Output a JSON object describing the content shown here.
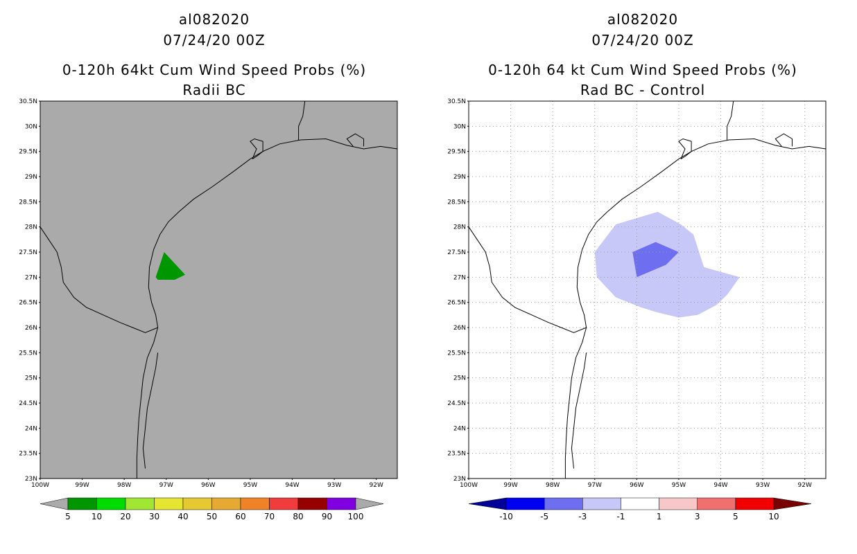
{
  "left_panel": {
    "storm_id": "al082020",
    "datetime": "07/24/20 00Z",
    "title": "0-120h 64kt Cum Wind Speed Probs (%)",
    "subtitle": "Radii BC",
    "land_color": "#aaaaaa",
    "colorbar": {
      "colors": [
        "#aaaaaa",
        "#009600",
        "#00dc00",
        "#a0e632",
        "#e6e632",
        "#e6c832",
        "#e6aa32",
        "#f08228",
        "#f03c3c",
        "#960000",
        "#8000e0",
        "#aaaaaa"
      ],
      "labels": [
        "5",
        "10",
        "20",
        "30",
        "40",
        "50",
        "60",
        "70",
        "80",
        "90",
        "100"
      ]
    }
  },
  "right_panel": {
    "storm_id": "al082020",
    "datetime": "07/24/20 00Z",
    "title": "0-120h 64 kt Cum Wind Speed Probs (%)",
    "subtitle": "Rad BC - Control",
    "colorbar": {
      "colors": [
        "#000096",
        "#0000f0",
        "#6e6ef0",
        "#c8c8f8",
        "#ffffff",
        "#f8c8c8",
        "#f07070",
        "#f00000",
        "#780000"
      ],
      "labels": [
        "-10",
        "-5",
        "-3",
        "-1",
        "1",
        "3",
        "5",
        "10"
      ]
    }
  },
  "axes": {
    "lat_labels": [
      "30.5N",
      "30N",
      "29.5N",
      "29N",
      "28.5N",
      "28N",
      "27.5N",
      "27N",
      "26.5N",
      "26N",
      "25.5N",
      "25N",
      "24.5N",
      "24N",
      "23.5N",
      "23N"
    ],
    "lon_labels": [
      "100W",
      "99W",
      "98W",
      "97W",
      "96W",
      "95W",
      "94W",
      "93W",
      "92W"
    ],
    "lat_range": [
      23,
      30.5
    ],
    "lon_range": [
      -100,
      -91.5
    ]
  },
  "map_data": {
    "coastline": [
      [
        -97.7,
        23.0
      ],
      [
        -97.7,
        23.4
      ],
      [
        -97.68,
        23.8
      ],
      [
        -97.65,
        24.2
      ],
      [
        -97.6,
        24.6
      ],
      [
        -97.55,
        25.0
      ],
      [
        -97.45,
        25.4
      ],
      [
        -97.3,
        25.7
      ],
      [
        -97.2,
        26.0
      ],
      [
        -97.25,
        26.25
      ],
      [
        -97.35,
        26.5
      ],
      [
        -97.42,
        26.8
      ],
      [
        -97.4,
        27.2
      ],
      [
        -97.3,
        27.55
      ],
      [
        -97.15,
        27.85
      ],
      [
        -96.95,
        28.1
      ],
      [
        -96.7,
        28.3
      ],
      [
        -96.35,
        28.55
      ],
      [
        -95.9,
        28.8
      ],
      [
        -95.4,
        29.1
      ],
      [
        -95.0,
        29.35
      ],
      [
        -94.7,
        29.5
      ],
      [
        -94.3,
        29.65
      ],
      [
        -93.8,
        29.73
      ],
      [
        -93.2,
        29.75
      ],
      [
        -92.7,
        29.62
      ],
      [
        -92.3,
        29.55
      ],
      [
        -91.9,
        29.6
      ],
      [
        -91.5,
        29.55
      ]
    ],
    "border": [
      [
        -100.0,
        28.0
      ],
      [
        -99.8,
        27.75
      ],
      [
        -99.6,
        27.5
      ],
      [
        -99.5,
        27.2
      ],
      [
        -99.45,
        26.9
      ],
      [
        -99.2,
        26.6
      ],
      [
        -98.9,
        26.4
      ],
      [
        -98.5,
        26.25
      ],
      [
        -98.1,
        26.1
      ],
      [
        -97.8,
        26.0
      ],
      [
        -97.5,
        25.9
      ],
      [
        -97.2,
        26.0
      ]
    ],
    "galveston_bay": [
      [
        -94.95,
        29.35
      ],
      [
        -94.85,
        29.55
      ],
      [
        -95.0,
        29.7
      ],
      [
        -94.9,
        29.75
      ],
      [
        -94.7,
        29.7
      ],
      [
        -94.7,
        29.5
      ],
      [
        -94.85,
        29.4
      ],
      [
        -94.95,
        29.35
      ]
    ],
    "sabine_river": [
      [
        -93.85,
        29.73
      ],
      [
        -93.85,
        30.0
      ],
      [
        -93.75,
        30.2
      ],
      [
        -93.7,
        30.5
      ]
    ],
    "calcasieu": [
      [
        -92.55,
        29.6
      ],
      [
        -92.7,
        29.75
      ],
      [
        -92.5,
        29.85
      ],
      [
        -92.3,
        29.75
      ],
      [
        -92.3,
        29.6
      ]
    ],
    "lagoon": [
      [
        -97.5,
        23.2
      ],
      [
        -97.55,
        23.6
      ],
      [
        -97.5,
        24.0
      ],
      [
        -97.45,
        24.4
      ],
      [
        -97.35,
        24.8
      ],
      [
        -97.25,
        25.2
      ],
      [
        -97.2,
        25.5
      ]
    ],
    "left_prob_contour": {
      "value_range": "5-10",
      "color": "#009600",
      "points": [
        [
          -97.05,
          27.5
        ],
        [
          -96.55,
          27.05
        ],
        [
          -96.8,
          26.95
        ],
        [
          -97.2,
          26.95
        ],
        [
          -97.25,
          27.0
        ],
        [
          -97.05,
          27.5
        ]
      ]
    },
    "right_light_contour": {
      "value_range": "-3 to -1",
      "color": "#c8c8f8",
      "points": [
        [
          -97.0,
          27.5
        ],
        [
          -96.5,
          28.05
        ],
        [
          -95.5,
          28.3
        ],
        [
          -94.95,
          28.05
        ],
        [
          -94.65,
          27.85
        ],
        [
          -94.4,
          27.2
        ],
        [
          -93.55,
          27.0
        ],
        [
          -93.85,
          26.65
        ],
        [
          -94.1,
          26.45
        ],
        [
          -94.55,
          26.25
        ],
        [
          -95.0,
          26.2
        ],
        [
          -95.5,
          26.3
        ],
        [
          -95.9,
          26.4
        ],
        [
          -96.5,
          26.6
        ],
        [
          -96.95,
          27.0
        ],
        [
          -97.0,
          27.5
        ]
      ]
    },
    "right_dark_contour": {
      "value_range": "-5 to -3",
      "color": "#6e6ef0",
      "points": [
        [
          -96.1,
          27.5
        ],
        [
          -95.55,
          27.7
        ],
        [
          -95.0,
          27.5
        ],
        [
          -95.3,
          27.25
        ],
        [
          -96.0,
          27.0
        ],
        [
          -96.1,
          27.5
        ]
      ]
    }
  }
}
